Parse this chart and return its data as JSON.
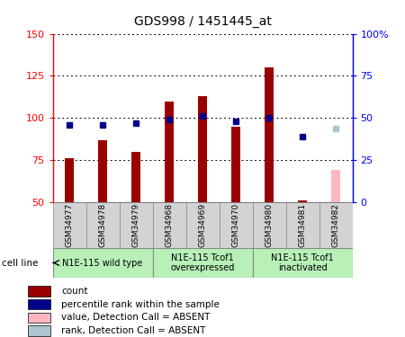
{
  "title": "GDS998 / 1451445_at",
  "samples": [
    "GSM34977",
    "GSM34978",
    "GSM34979",
    "GSM34968",
    "GSM34969",
    "GSM34970",
    "GSM34980",
    "GSM34981",
    "GSM34982"
  ],
  "count_values": [
    76,
    87,
    80,
    110,
    113,
    95,
    130,
    51,
    null
  ],
  "rank_values": [
    46,
    46,
    47,
    49,
    51,
    48,
    50,
    39,
    null
  ],
  "absent_count": [
    null,
    null,
    null,
    null,
    null,
    null,
    null,
    null,
    69
  ],
  "absent_rank": [
    null,
    null,
    null,
    null,
    null,
    null,
    null,
    null,
    44
  ],
  "count_color": "#9b0000",
  "rank_color": "#00008b",
  "absent_count_color": "#ffb6c1",
  "absent_rank_color": "#aec6cf",
  "ylim_left": [
    50,
    150
  ],
  "ylim_right": [
    0,
    100
  ],
  "yticks_left": [
    50,
    75,
    100,
    125,
    150
  ],
  "yticks_right": [
    0,
    25,
    50,
    75,
    100
  ],
  "ytick_labels_left": [
    "50",
    "75",
    "100",
    "125",
    "150"
  ],
  "ytick_labels_right": [
    "0",
    "25",
    "50",
    "75",
    "100%"
  ],
  "groups": [
    {
      "label": "N1E-115 wild type",
      "indices": [
        0,
        1,
        2
      ]
    },
    {
      "label": "N1E-115 Tcof1\noverexpressed",
      "indices": [
        3,
        4,
        5
      ]
    },
    {
      "label": "N1E-115 Tcof1\ninactivated",
      "indices": [
        6,
        7,
        8
      ]
    }
  ],
  "cell_line_label": "cell line",
  "background_color": "#ffffff"
}
